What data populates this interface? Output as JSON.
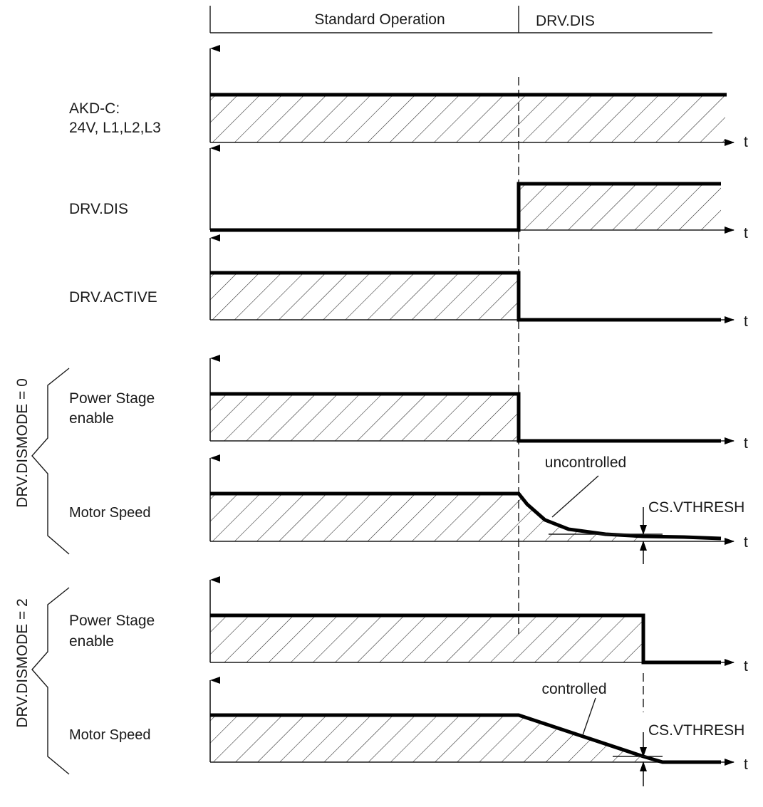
{
  "header": {
    "phase_standard": "Standard Operation",
    "phase_drvdis": "DRV.DIS"
  },
  "axis_unit": "t",
  "signals": {
    "akdc_line1": "AKD-C:",
    "akdc_line2": "24V, L1,L2,L3",
    "drv_dis": "DRV.DIS",
    "drv_active": "DRV.ACTIVE"
  },
  "mode0": {
    "group_label": "DRV.DISMODE = 0",
    "power_stage_line1": "Power Stage",
    "power_stage_line2": "enable",
    "motor_speed": "Motor Speed",
    "annotation": "uncontrolled",
    "threshold": "CS.VTHRESH"
  },
  "mode2": {
    "group_label": "DRV.DISMODE = 2",
    "power_stage_line1": "Power Stage",
    "power_stage_line2": "enable",
    "motor_speed": "Motor Speed",
    "annotation": "controlled",
    "threshold": "CS.VTHRESH"
  },
  "icons": [
    "axis-arrow-icon",
    "threshold-arrow-icon"
  ]
}
